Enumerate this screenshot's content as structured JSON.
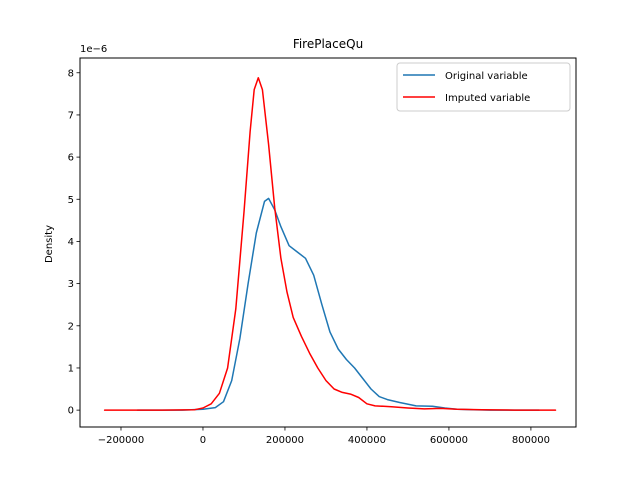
{
  "chart_data": {
    "type": "line",
    "title": "FirePlaceQu",
    "xlabel": "",
    "ylabel": "Density",
    "y_offset_label": "1e−6",
    "xlim": [
      -300000,
      910000
    ],
    "ylim": [
      -0.4,
      8.35
    ],
    "y_unit_scale": "1e-6",
    "xticks": [
      -200000,
      0,
      200000,
      400000,
      600000,
      800000
    ],
    "xtick_labels": [
      "−200000",
      "0",
      "200000",
      "400000",
      "600000",
      "800000"
    ],
    "yticks": [
      0,
      1,
      2,
      3,
      4,
      5,
      6,
      7,
      8
    ],
    "ytick_labels": [
      "0",
      "1",
      "2",
      "3",
      "4",
      "5",
      "6",
      "7",
      "8"
    ],
    "grid": false,
    "legend_position": "top-right",
    "series": [
      {
        "name": "Original variable",
        "color": "#1f77b4",
        "x": [
          -160000,
          -50000,
          0,
          30000,
          50000,
          70000,
          90000,
          110000,
          130000,
          150000,
          160000,
          175000,
          190000,
          210000,
          230000,
          250000,
          270000,
          290000,
          310000,
          330000,
          350000,
          370000,
          390000,
          410000,
          430000,
          450000,
          480000,
          520000,
          560000,
          590000,
          620000,
          660000,
          700000,
          760000,
          820000
        ],
        "values": [
          0,
          0,
          0.02,
          0.06,
          0.2,
          0.7,
          1.7,
          3.0,
          4.2,
          4.95,
          5.02,
          4.75,
          4.35,
          3.9,
          3.75,
          3.6,
          3.2,
          2.5,
          1.85,
          1.45,
          1.2,
          1.0,
          0.75,
          0.5,
          0.32,
          0.25,
          0.18,
          0.1,
          0.09,
          0.05,
          0.02,
          0.01,
          0,
          0,
          0
        ]
      },
      {
        "name": "Imputed variable",
        "color": "#ff0000",
        "x": [
          -240000,
          -100000,
          -20000,
          0,
          20000,
          40000,
          60000,
          80000,
          100000,
          115000,
          125000,
          135000,
          145000,
          160000,
          175000,
          190000,
          205000,
          220000,
          240000,
          260000,
          280000,
          300000,
          320000,
          340000,
          360000,
          380000,
          400000,
          420000,
          440000,
          460000,
          500000,
          540000,
          580000,
          620000,
          680000,
          760000,
          860000
        ],
        "values": [
          0,
          0,
          0.01,
          0.05,
          0.15,
          0.4,
          1.0,
          2.4,
          4.7,
          6.6,
          7.6,
          7.88,
          7.6,
          6.3,
          4.8,
          3.6,
          2.8,
          2.2,
          1.75,
          1.35,
          1.0,
          0.7,
          0.5,
          0.42,
          0.38,
          0.3,
          0.15,
          0.1,
          0.09,
          0.08,
          0.05,
          0.03,
          0.04,
          0.02,
          0.01,
          0,
          0
        ]
      }
    ]
  }
}
